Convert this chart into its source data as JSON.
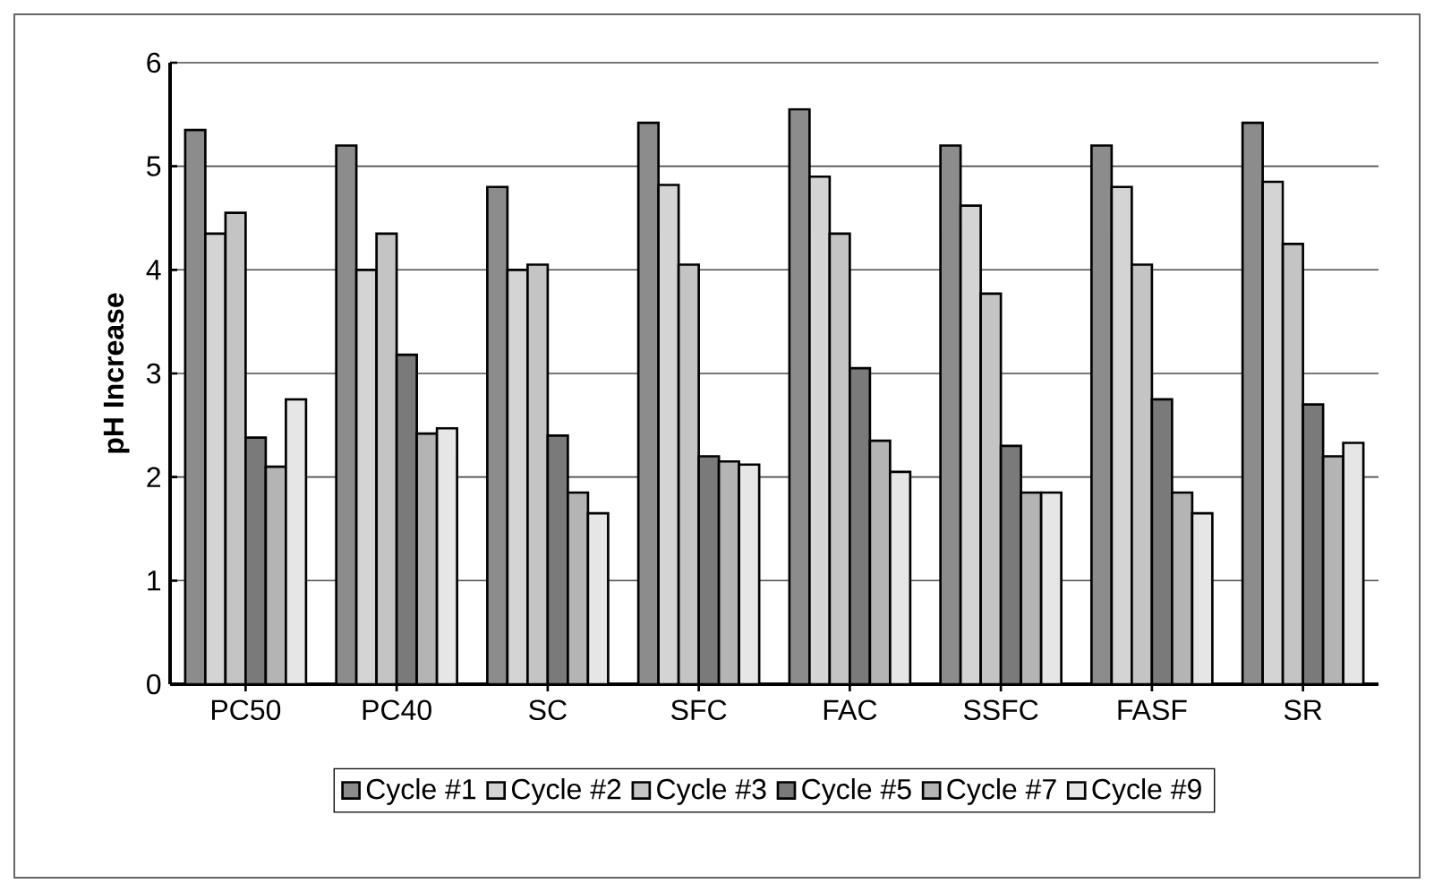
{
  "chart_data": {
    "type": "bar",
    "ylabel": "pH Increase",
    "categories": [
      "PC50",
      "PC40",
      "SC",
      "SFC",
      "FAC",
      "SSFC",
      "FASF",
      "SR"
    ],
    "series": [
      {
        "name": "Cycle #1",
        "color": "#8c8c8c",
        "values": [
          5.35,
          5.2,
          4.8,
          5.42,
          5.55,
          5.2,
          5.2,
          5.42
        ]
      },
      {
        "name": "Cycle #2",
        "color": "#d4d4d4",
        "values": [
          4.35,
          4.0,
          4.0,
          4.82,
          4.9,
          4.62,
          4.8,
          4.85
        ]
      },
      {
        "name": "Cycle #3",
        "color": "#c4c4c4",
        "values": [
          4.55,
          4.35,
          4.05,
          4.05,
          4.35,
          3.77,
          4.05,
          4.25
        ]
      },
      {
        "name": "Cycle #5",
        "color": "#7a7a7a",
        "values": [
          2.38,
          3.18,
          2.4,
          2.2,
          3.05,
          2.3,
          2.75,
          2.7
        ]
      },
      {
        "name": "Cycle #7",
        "color": "#b4b4b4",
        "values": [
          2.1,
          2.42,
          1.85,
          2.15,
          2.35,
          1.85,
          1.85,
          2.2
        ]
      },
      {
        "name": "Cycle #9",
        "color": "#e6e6e6",
        "values": [
          2.75,
          2.47,
          1.65,
          2.12,
          2.05,
          1.85,
          1.65,
          2.33
        ]
      }
    ],
    "ylim": [
      0,
      6
    ],
    "yticks": [
      0,
      1,
      2,
      3,
      4,
      5,
      6
    ],
    "grid": "y",
    "legend": "bottom"
  }
}
